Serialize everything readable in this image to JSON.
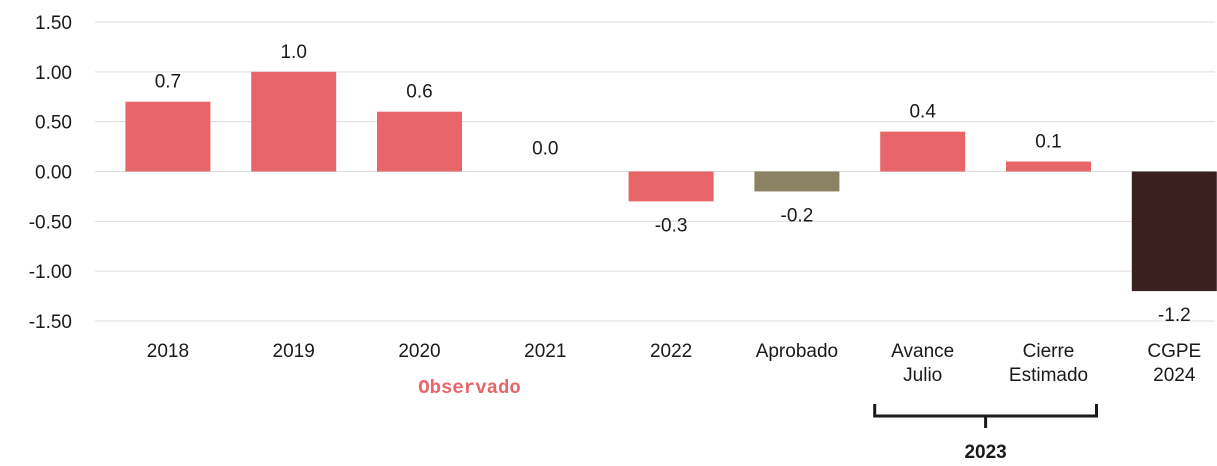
{
  "chart_data": {
    "type": "bar",
    "categories": [
      [
        "2018"
      ],
      [
        "2019"
      ],
      [
        "2020"
      ],
      [
        "2021"
      ],
      [
        "2022"
      ],
      [
        "Aprobado"
      ],
      [
        "Avance",
        "Julio"
      ],
      [
        "Cierre",
        "Estimado"
      ],
      [
        "CGPE",
        "2024"
      ]
    ],
    "values": [
      0.7,
      1.0,
      0.6,
      0.0,
      -0.3,
      -0.2,
      0.4,
      0.1,
      -1.2
    ],
    "value_labels": [
      "0.7",
      "1.0",
      "0.6",
      "0.0",
      "-0.3",
      "-0.2",
      "0.4",
      "0.1",
      "-1.2"
    ],
    "bar_colors": [
      "#e8666a",
      "#e8666a",
      "#e8666a",
      "#e8666a",
      "#e8666a",
      "#8a8262",
      "#e8666a",
      "#e8666a",
      "#3a201f"
    ],
    "yticks": [
      "1.50",
      "1.00",
      "0.50",
      "0.00",
      "-0.50",
      "-1.00",
      "-1.50"
    ],
    "ytick_values": [
      1.5,
      1.0,
      0.5,
      0.0,
      -0.5,
      -1.0,
      -1.5
    ],
    "ylim": [
      -1.5,
      1.5
    ],
    "grid": true,
    "groups": [
      {
        "label": "Observado",
        "first_category": 0,
        "last_category": 4,
        "color": "#e8666a"
      },
      {
        "label": "2023",
        "first_category": 6,
        "last_category": 7,
        "bracket": true
      }
    ],
    "colors": {
      "grid": "#dcdcdc",
      "text": "#1a1a1a",
      "bracket": "#1a1a1a"
    }
  }
}
